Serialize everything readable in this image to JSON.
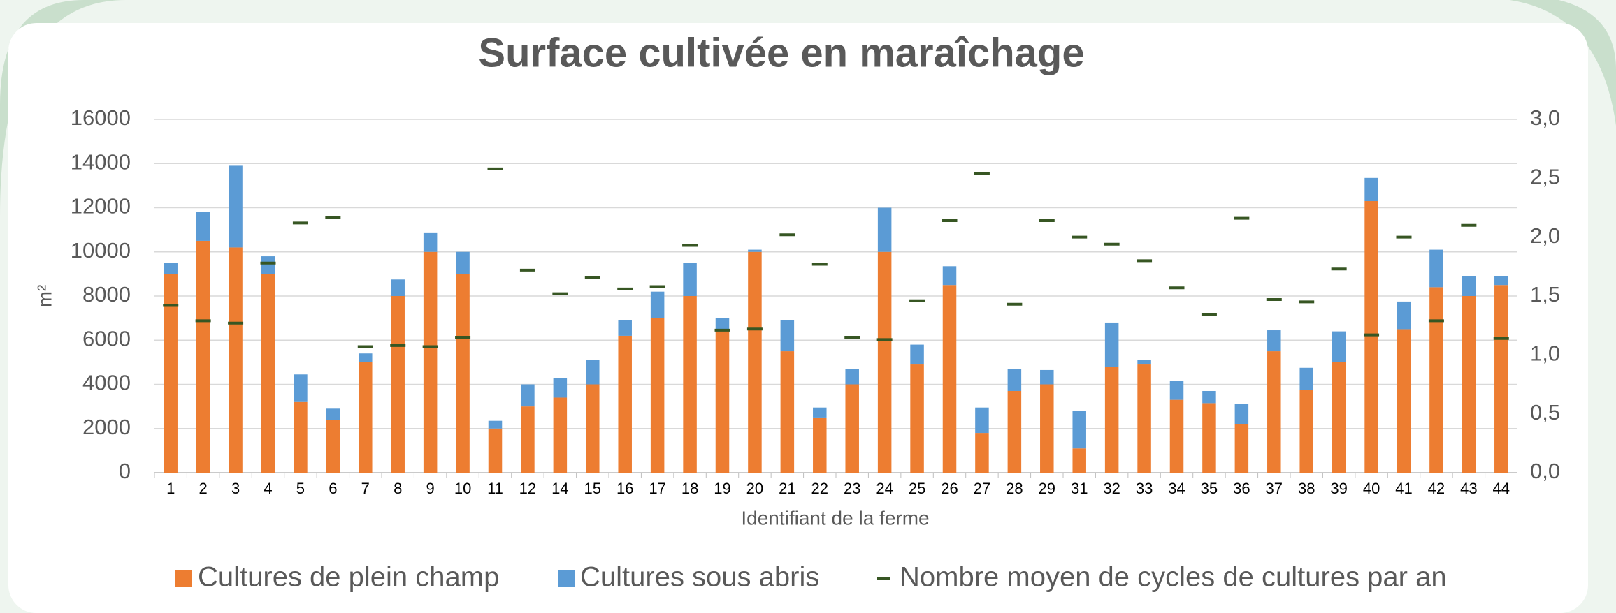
{
  "chart_data": {
    "type": "bar",
    "stacked": true,
    "title": "Surface cultivée en maraîchage",
    "x_label": "Identifiant de la ferme",
    "y_label": "m²",
    "categories": [
      "1",
      "2",
      "3",
      "4",
      "5",
      "6",
      "7",
      "8",
      "9",
      "10",
      "11",
      "12",
      "14",
      "15",
      "16",
      "17",
      "18",
      "19",
      "20",
      "21",
      "22",
      "23",
      "24",
      "25",
      "26",
      "27",
      "28",
      "29",
      "31",
      "32",
      "33",
      "34",
      "35",
      "36",
      "37",
      "38",
      "39",
      "40",
      "41",
      "42",
      "43",
      "44"
    ],
    "series": [
      {
        "name": "Cultures de plein champ",
        "color": "#ed7d31",
        "values": [
          9000,
          10500,
          10200,
          9000,
          3200,
          2400,
          5000,
          8000,
          10000,
          9000,
          2000,
          3000,
          3400,
          4000,
          6200,
          7000,
          8000,
          6500,
          10000,
          5500,
          2500,
          4000,
          10000,
          4900,
          8500,
          1800,
          3700,
          4000,
          1100,
          4800,
          4900,
          3300,
          3150,
          2200,
          5500,
          3750,
          5000,
          12300,
          6500,
          8400,
          8000,
          8500
        ]
      },
      {
        "name": "Cultures sous abris",
        "color": "#5b9bd5",
        "values": [
          500,
          1300,
          3700,
          800,
          1250,
          500,
          400,
          750,
          850,
          1000,
          350,
          1000,
          900,
          1100,
          700,
          1200,
          1500,
          500,
          100,
          1400,
          450,
          700,
          2000,
          900,
          850,
          1150,
          1000,
          650,
          1700,
          2000,
          200,
          850,
          550,
          900,
          950,
          1000,
          1400,
          1050,
          1250,
          1700,
          900,
          400
        ]
      },
      {
        "name": "Nombre moyen de cycles de cultures par an",
        "color": "#375623",
        "axis": "y2",
        "marker": "dash",
        "values": [
          1.42,
          1.29,
          1.27,
          1.78,
          2.12,
          2.17,
          1.07,
          1.08,
          1.07,
          1.15,
          2.58,
          1.72,
          1.52,
          1.66,
          1.56,
          1.58,
          1.93,
          1.21,
          1.22,
          2.02,
          1.77,
          1.15,
          1.13,
          1.46,
          2.14,
          2.54,
          1.43,
          2.14,
          2.0,
          1.94,
          1.8,
          1.57,
          1.34,
          2.16,
          1.47,
          1.45,
          1.73,
          1.17,
          2.0,
          1.29,
          2.1,
          1.14
        ]
      }
    ],
    "ylim": [
      0,
      16000
    ],
    "yticks": [
      0,
      2000,
      4000,
      6000,
      8000,
      10000,
      12000,
      14000,
      16000
    ],
    "y2lim": [
      0,
      3
    ],
    "y2ticks": [
      {
        "value": 0,
        "label": "0,0"
      },
      {
        "value": 0.5,
        "label": "0,5"
      },
      {
        "value": 1,
        "label": "1,0"
      },
      {
        "value": 1.5,
        "label": "1,5"
      },
      {
        "value": 2,
        "label": "2,0"
      },
      {
        "value": 2.5,
        "label": "2,5"
      },
      {
        "value": 3,
        "label": "3,0"
      }
    ],
    "grid": true,
    "legend": "bottom"
  }
}
